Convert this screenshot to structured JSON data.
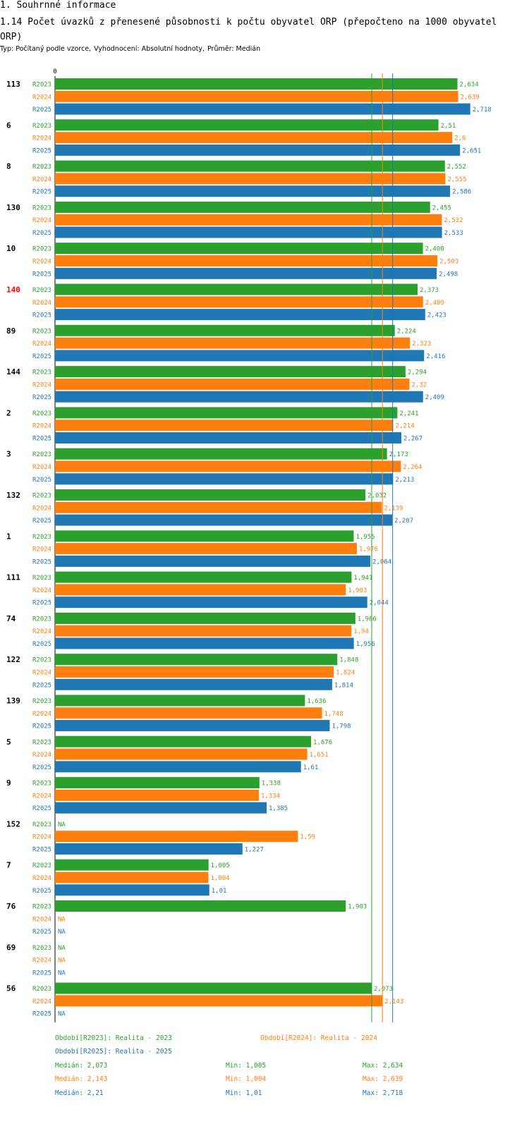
{
  "header": {
    "section_title": "1. Souhrnné informace",
    "chart_title": "1.14 Počet úvazků z přenesené působnosti k počtu obyvatel ORP (přepočteno na 1000 obyvatel ORP)",
    "subtitle_parts": [
      "Typ: Počítaný podle vzorce,",
      "Vyhodnocení: Absolutní hodnoty,",
      "Průměr: Medián"
    ]
  },
  "colors": {
    "R2023": "#2ca02c",
    "R2024": "#ff7f0e",
    "R2025": "#1f77b4",
    "highlight": "#ff0000",
    "text": "#000000"
  },
  "chart_data": {
    "type": "bar",
    "orientation": "horizontal",
    "axis_zero_label": "0",
    "xlim": [
      0,
      2.92
    ],
    "na_label": "NA",
    "series_names": [
      "R2023",
      "R2024",
      "R2025"
    ],
    "highlighted_category": "140",
    "categories": [
      "113",
      "6",
      "8",
      "130",
      "10",
      "140",
      "89",
      "144",
      "2",
      "3",
      "132",
      "1",
      "111",
      "74",
      "122",
      "139",
      "5",
      "9",
      "152",
      "7",
      "76",
      "69",
      "56"
    ],
    "series": [
      {
        "name": "R2023",
        "values": [
          2.634,
          2.51,
          2.552,
          2.455,
          2.408,
          2.373,
          2.224,
          2.294,
          2.241,
          2.173,
          2.032,
          1.955,
          1.941,
          1.966,
          1.848,
          1.636,
          1.676,
          1.338,
          null,
          1.005,
          1.903,
          null,
          2.073
        ],
        "labels": [
          "2,634",
          "2,51",
          "2,552",
          "2,455",
          "2,408",
          "2,373",
          "2,224",
          "2,294",
          "2,241",
          "2,173",
          "2,032",
          "1,955",
          "1,941",
          "1,966",
          "1,848",
          "1,636",
          "1,676",
          "1,338",
          "NA",
          "1,005",
          "1,903",
          "NA",
          "2,073"
        ]
      },
      {
        "name": "R2024",
        "values": [
          2.639,
          2.6,
          2.555,
          2.532,
          2.503,
          2.409,
          2.323,
          2.32,
          2.214,
          2.264,
          2.139,
          1.976,
          1.903,
          1.94,
          1.824,
          1.748,
          1.651,
          1.334,
          1.59,
          1.004,
          null,
          null,
          2.143
        ],
        "labels": [
          "2,639",
          "2,6",
          "2,555",
          "2,532",
          "2,503",
          "2,409",
          "2,323",
          "2,32",
          "2,214",
          "2,264",
          "2,139",
          "1,976",
          "1,903",
          "1,94",
          "1,824",
          "1,748",
          "1,651",
          "1,334",
          "1,59",
          "1,004",
          "NA",
          "NA",
          "2,143"
        ]
      },
      {
        "name": "R2025",
        "values": [
          2.718,
          2.651,
          2.586,
          2.533,
          2.498,
          2.423,
          2.416,
          2.409,
          2.267,
          2.213,
          2.207,
          2.064,
          2.044,
          1.956,
          1.814,
          1.798,
          1.61,
          1.385,
          1.227,
          1.01,
          null,
          null,
          null
        ],
        "labels": [
          "2,718",
          "2,651",
          "2,586",
          "2,533",
          "2,498",
          "2,423",
          "2,416",
          "2,409",
          "2,267",
          "2,213",
          "2,207",
          "2,064",
          "2,044",
          "1,956",
          "1,814",
          "1,798",
          "1,61",
          "1,385",
          "1,227",
          "1,01",
          "NA",
          "NA",
          "NA"
        ]
      }
    ],
    "median_lines": {
      "R2023": 2.073,
      "R2024": 2.143,
      "R2025": 2.21
    }
  },
  "legend": {
    "periods": [
      {
        "series": "R2023",
        "text": "Období[R2023]: Realita - 2023"
      },
      {
        "series": "R2024",
        "text": "Období[R2024]: Realita - 2024"
      },
      {
        "series": "R2025",
        "text": "Období[R2025]: Realita - 2025"
      }
    ],
    "stats": [
      {
        "series": "R2023",
        "median": "Medián: 2,073",
        "min": "Min: 1,005",
        "max": "Max: 2,634"
      },
      {
        "series": "R2024",
        "median": "Medián: 2,143",
        "min": "Min: 1,004",
        "max": "Max: 2,639"
      },
      {
        "series": "R2025",
        "median": "Medián: 2,21",
        "min": "Min: 1,01",
        "max": "Max: 2,718"
      }
    ]
  }
}
